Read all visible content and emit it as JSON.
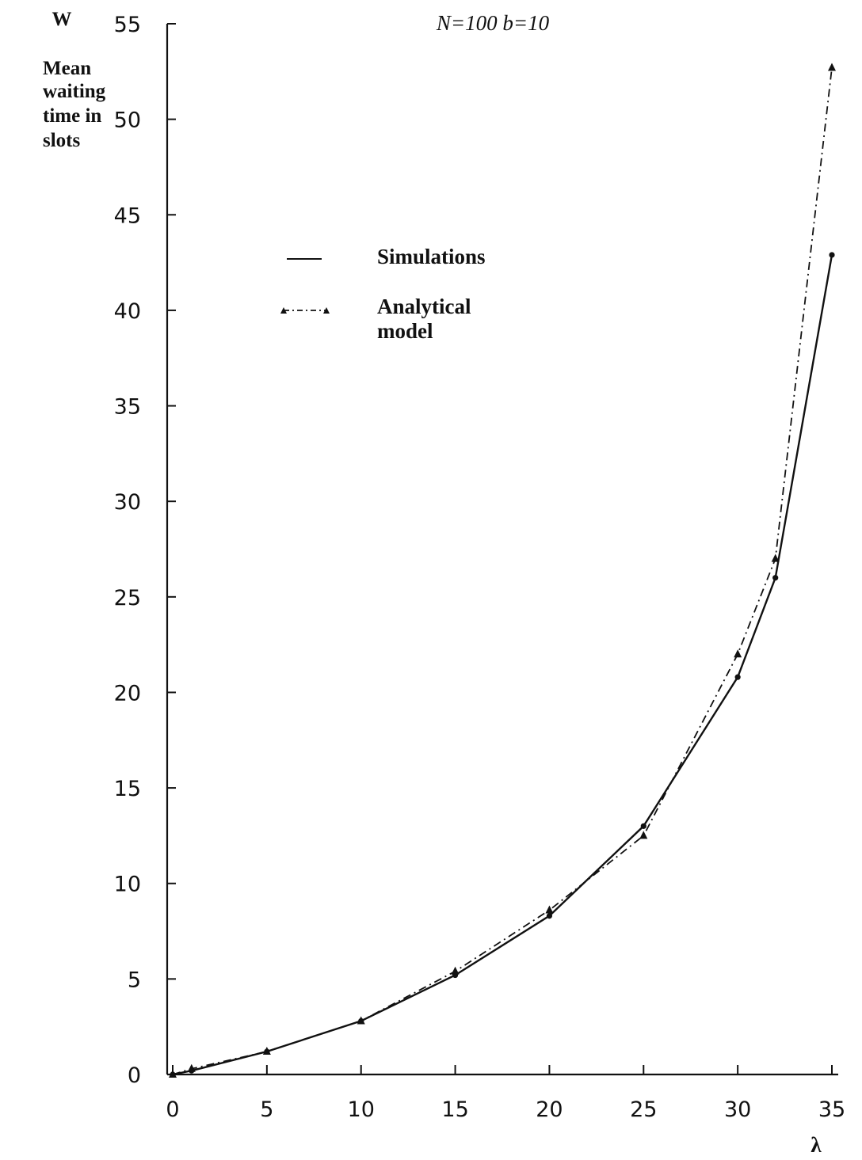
{
  "chart_data": {
    "type": "line",
    "title": "N=100  b=10",
    "xlabel": "λ",
    "ylabel_symbol": "W",
    "ylabel_lines": [
      "Mean",
      "waiting",
      "time in",
      "slots"
    ],
    "xlim": [
      0,
      35
    ],
    "ylim": [
      0,
      55
    ],
    "xticks": [
      0,
      5,
      10,
      15,
      20,
      25,
      30,
      35
    ],
    "yticks": [
      0,
      5,
      10,
      15,
      20,
      25,
      30,
      35,
      40,
      45,
      50,
      55
    ],
    "grid": false,
    "legend_placement": "upper-left",
    "series": [
      {
        "name": "Simulations",
        "style": "solid",
        "marker": "dot",
        "color": "#111111",
        "x": [
          0,
          1,
          5,
          10,
          15,
          20,
          25,
          30,
          32,
          35
        ],
        "y": [
          0,
          0.2,
          1.2,
          2.8,
          5.2,
          8.3,
          13.0,
          20.8,
          26.0,
          42.9
        ]
      },
      {
        "name": "Analytical model",
        "legend_lines": [
          "Analytical",
          "model"
        ],
        "style": "dash-dot",
        "marker": "triangle",
        "color": "#111111",
        "x": [
          0,
          1,
          5,
          10,
          15,
          20,
          25,
          30,
          32,
          35
        ],
        "y": [
          0,
          0.3,
          1.2,
          2.8,
          5.4,
          8.6,
          12.5,
          22.0,
          27.0,
          52.7
        ]
      }
    ]
  }
}
